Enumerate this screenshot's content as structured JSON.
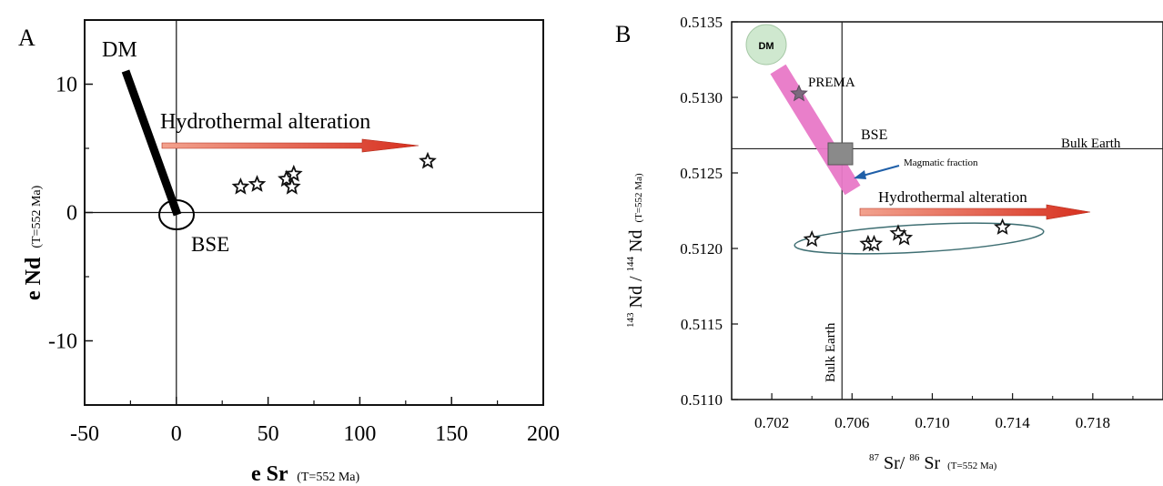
{
  "chart_data": [
    {
      "type": "scatter",
      "panel_label": "A",
      "xlabel": "e Sr",
      "xlabel_sub": "(T=552 Ma)",
      "ylabel": "e Nd",
      "ylabel_sub": "(T=552 Ma)",
      "xlim": [
        -50,
        200
      ],
      "ylim": [
        -15,
        15
      ],
      "x_ticks": [
        -50,
        0,
        50,
        100,
        150,
        200
      ],
      "y_ticks": [
        -10,
        0,
        10
      ],
      "points": [
        {
          "x": 35,
          "y": 2.0
        },
        {
          "x": 44,
          "y": 2.2
        },
        {
          "x": 60,
          "y": 2.6
        },
        {
          "x": 63,
          "y": 2.0
        },
        {
          "x": 64,
          "y": 3.0
        },
        {
          "x": 137,
          "y": 4.0
        }
      ],
      "annotations": {
        "dm": "DM",
        "bse": "BSE",
        "hydrothermal": "Hydrothermal alteration"
      }
    },
    {
      "type": "scatter",
      "panel_label": "B",
      "xlabel_parts": [
        "87",
        "Sr/",
        "86",
        "Sr",
        "(T=552 Ma)"
      ],
      "ylabel_parts": [
        "143",
        "Nd /",
        "144",
        "Nd",
        "(T=552 Ma)"
      ],
      "xlim": [
        0.7,
        0.7215
      ],
      "ylim": [
        0.511,
        0.5135
      ],
      "x_ticks": [
        "0.702",
        "0.706",
        "0.710",
        "0.714",
        "0.718"
      ],
      "y_ticks": [
        "0.5110",
        "0.5115",
        "0.5120",
        "0.5125",
        "0.5130",
        "0.5135"
      ],
      "points": [
        {
          "x": 0.704,
          "y": 0.51206
        },
        {
          "x": 0.7068,
          "y": 0.51203
        },
        {
          "x": 0.7071,
          "y": 0.51203
        },
        {
          "x": 0.7083,
          "y": 0.5121
        },
        {
          "x": 0.7086,
          "y": 0.51207
        },
        {
          "x": 0.7135,
          "y": 0.51214
        }
      ],
      "reference_values": {
        "bulk_earth_x": 0.7055,
        "bulk_earth_y": 0.51266
      },
      "annotations": {
        "dm": "DM",
        "prema": "PREMA",
        "bse": "BSE",
        "bulk_earth_h": "Bulk Earth",
        "bulk_earth_v": "Bulk Earth",
        "magmatic": "Magmatic fraction",
        "hydrothermal": "Hydrothermal alteration"
      },
      "colors": {
        "mantle_band": "#e879c8",
        "dm_circle": "#cfe8cf",
        "arrow": "#d7301f",
        "ellipse": "#3f6f73",
        "magmatic_arrow": "#1f5fa8"
      }
    }
  ]
}
